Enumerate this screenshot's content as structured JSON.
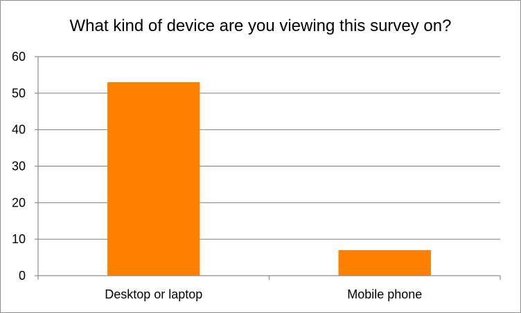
{
  "chart_data": {
    "type": "bar",
    "title": "What kind of device are you viewing this survey on?",
    "categories": [
      "Desktop or laptop",
      "Mobile phone"
    ],
    "values": [
      53,
      7
    ],
    "ylim": [
      0,
      60
    ],
    "yticks": [
      0,
      10,
      20,
      30,
      40,
      50,
      60
    ],
    "xlabel": "",
    "ylabel": "",
    "grid": true,
    "legend": "none",
    "bar_color": "#ff8000",
    "grid_color": "#8c8c8c"
  }
}
